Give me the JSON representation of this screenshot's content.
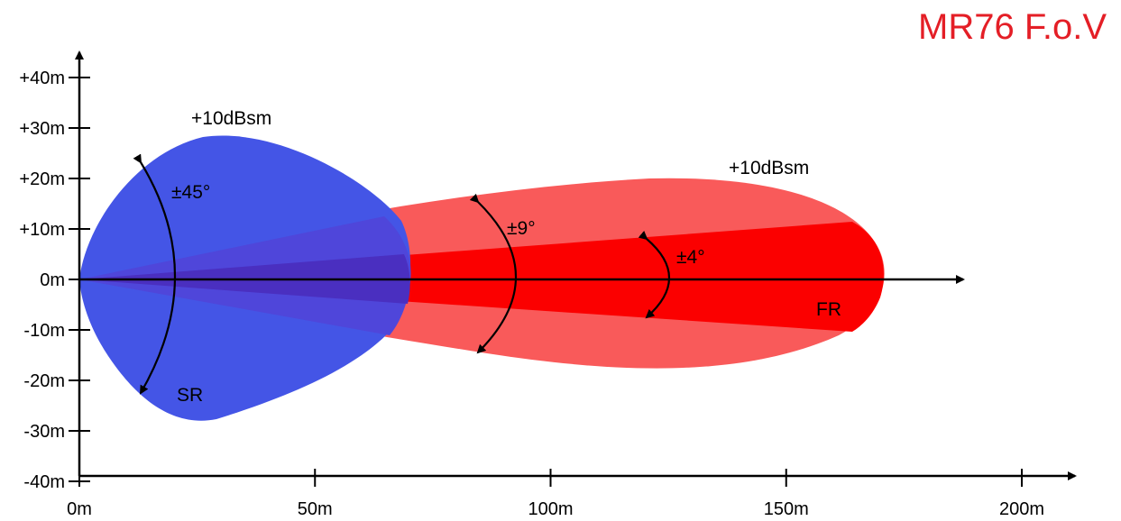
{
  "title": "MR76 F.o.V",
  "colors": {
    "short_range": "#4455e6",
    "long_range_outer": "#f95a5a",
    "long_range_inner": "#fb0000",
    "overlap": "#4a2fc0",
    "title": "#e41e26",
    "axis": "#000000"
  },
  "chart_data": {
    "type": "area",
    "x_ticks": [
      "0m",
      "50m",
      "100m",
      "150m",
      "200m"
    ],
    "x_tick_values": [
      0,
      50,
      100,
      150,
      200
    ],
    "y_ticks": [
      "+40m",
      "+30m",
      "+20m",
      "+10m",
      "0m",
      "-10m",
      "-20m",
      "-30m",
      "-40m"
    ],
    "y_tick_values": [
      40,
      30,
      20,
      10,
      0,
      -10,
      -20,
      -30,
      -40
    ],
    "regions": [
      {
        "label": "SR",
        "range_m": 70,
        "max_width_m": 28,
        "angle_label": "±45°",
        "gain_label": "+10dBsm"
      },
      {
        "label": "FR",
        "range_m": 170,
        "max_width_m": 20,
        "angle_label": "±9°",
        "gain_label": "+10dBsm"
      },
      {
        "label": "",
        "range_m": 170,
        "angle_label": "±4°"
      }
    ]
  }
}
